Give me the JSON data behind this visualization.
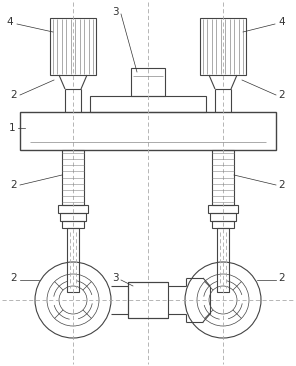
{
  "bg_color": "#ffffff",
  "line_color": "#444444",
  "dash_color": "#aaaaaa",
  "label_color": "#333333",
  "lw": 0.8,
  "tlw": 0.5,
  "fig_width": 2.96,
  "fig_height": 3.66,
  "dpi": 100
}
